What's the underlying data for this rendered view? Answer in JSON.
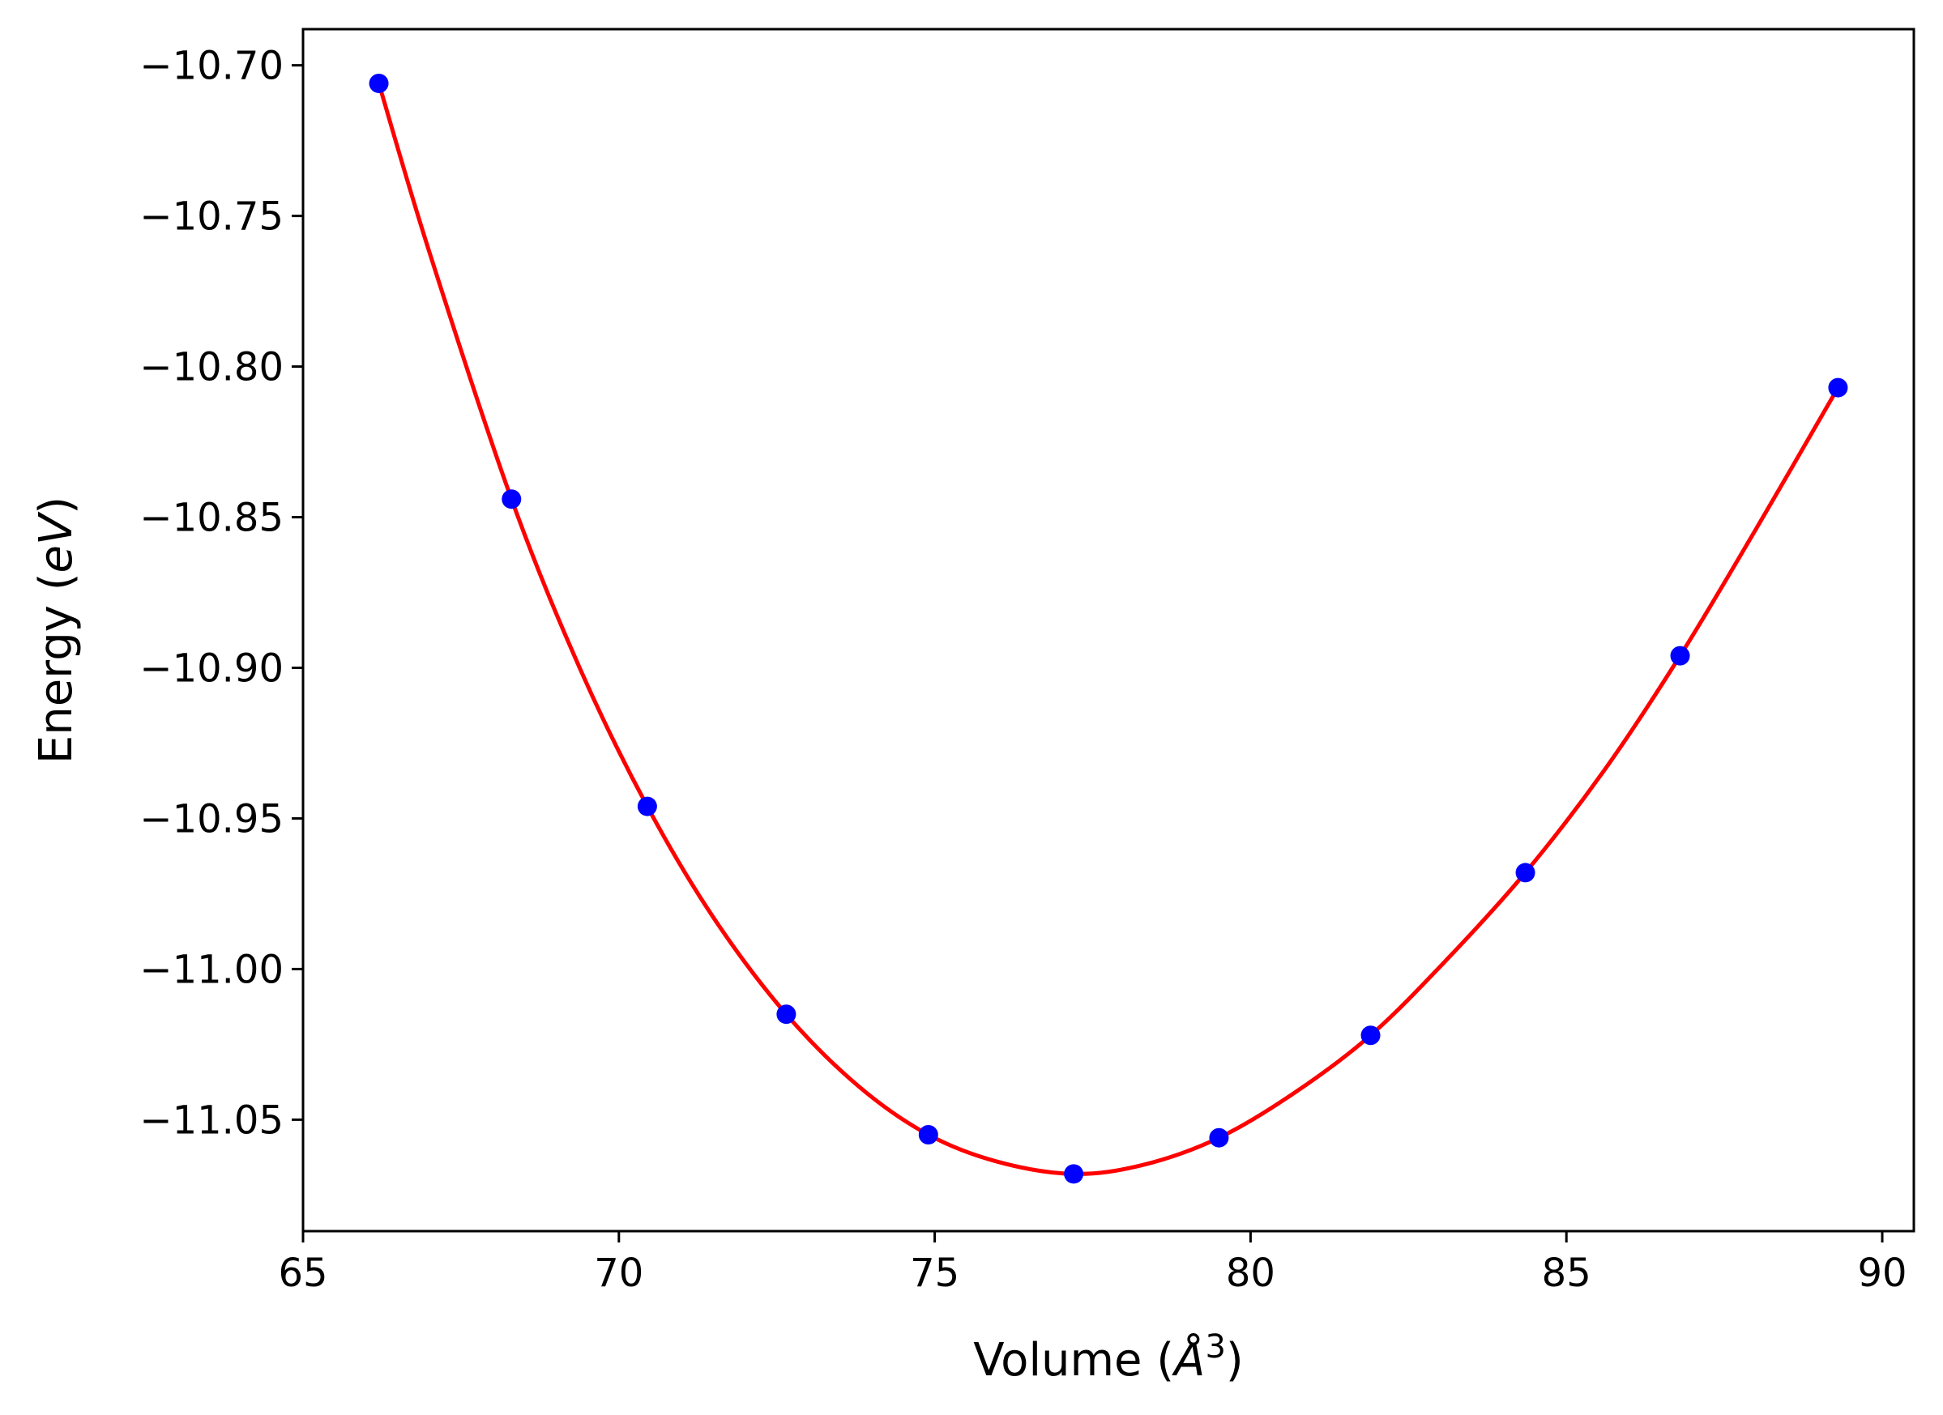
{
  "chart_data": {
    "type": "line",
    "title": "",
    "xlabel_parts": {
      "prefix": "Volume (",
      "unit": "Å",
      "exp": "3",
      "suffix": ")"
    },
    "ylabel_parts": {
      "prefix": "Energy (",
      "unit": "eV",
      "suffix": ")"
    },
    "xlim": [
      65,
      90.5
    ],
    "ylim": [
      -11.087,
      -10.688
    ],
    "x_ticks": [
      65,
      70,
      75,
      80,
      85,
      90
    ],
    "x_tick_labels": [
      "65",
      "70",
      "75",
      "80",
      "85",
      "90"
    ],
    "y_ticks": [
      -10.7,
      -10.75,
      -10.8,
      -10.85,
      -10.9,
      -10.95,
      -11.0,
      -11.05
    ],
    "y_tick_labels": [
      "−10.70",
      "−10.75",
      "−10.80",
      "−10.85",
      "−10.90",
      "−10.95",
      "−11.00",
      "−11.05"
    ],
    "grid": false,
    "series": [
      {
        "kind": "points",
        "color": "#0000ff",
        "x": [
          66.2,
          68.3,
          70.45,
          72.65,
          74.9,
          77.2,
          79.5,
          81.9,
          84.35,
          86.8,
          89.3
        ],
        "y": [
          -10.706,
          -10.844,
          -10.946,
          -11.015,
          -11.055,
          -11.068,
          -11.056,
          -11.022,
          -10.968,
          -10.896,
          -10.807
        ]
      },
      {
        "kind": "fit-curve",
        "color": "#ff0000",
        "x": [
          66.2,
          67.0,
          68.3,
          69.4,
          70.45,
          71.5,
          72.65,
          73.8,
          74.9,
          76.0,
          77.2,
          78.3,
          79.5,
          80.7,
          81.9,
          83.1,
          84.35,
          85.6,
          86.8,
          88.0,
          89.3
        ],
        "y": [
          -10.706,
          -10.762,
          -10.844,
          -10.901,
          -10.946,
          -10.983,
          -11.015,
          -11.039,
          -11.055,
          -11.064,
          -11.068,
          -11.065,
          -11.056,
          -11.041,
          -11.022,
          -10.997,
          -10.968,
          -10.934,
          -10.896,
          -10.854,
          -10.807
        ]
      }
    ]
  }
}
